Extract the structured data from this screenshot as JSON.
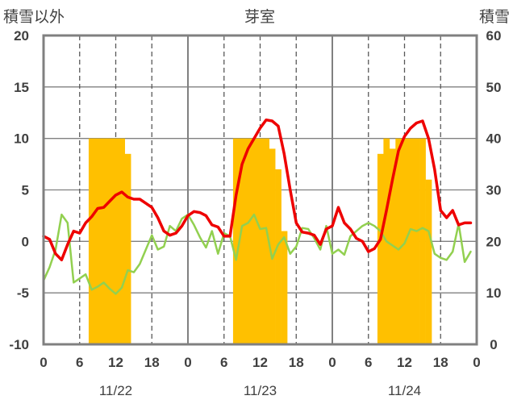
{
  "chart_data": {
    "type": "line",
    "title": "芽室",
    "left_axis_label": "積雪以外",
    "right_axis_label": "積雪",
    "left_ylim": [
      -10,
      20
    ],
    "left_ticks": [
      "20",
      "15",
      "10",
      "5",
      "0",
      "-5",
      "-10"
    ],
    "right_ylim": [
      0,
      60
    ],
    "right_ticks": [
      "60",
      "50",
      "40",
      "30",
      "20",
      "10",
      "0"
    ],
    "x_hour_ticks": [
      "0",
      "6",
      "12",
      "18",
      "0",
      "6",
      "12",
      "18",
      "0",
      "6",
      "12",
      "18",
      "0"
    ],
    "day_labels": [
      "11/22",
      "11/23",
      "11/24"
    ],
    "grid": "vertical dashed every 6 hours, horizontal solid every 5 units",
    "colors": {
      "temperature": "#ee0000",
      "wind": "#92d050",
      "snow_depth": "#ffc000",
      "baseline": "#7030a0",
      "frame": "#808080"
    },
    "snow_depth_bars": {
      "x_hours": [
        8,
        9,
        10,
        11,
        12,
        13,
        14,
        32,
        33,
        34,
        35,
        36,
        37,
        38,
        39,
        40,
        56,
        57,
        58,
        59,
        60,
        61,
        62,
        63,
        64
      ],
      "values": [
        40,
        40,
        40,
        40,
        40,
        40,
        37,
        40,
        40,
        40,
        40,
        40,
        40,
        38,
        34,
        22,
        37,
        40,
        38,
        40,
        40,
        40,
        40,
        40,
        32
      ]
    },
    "series": [
      {
        "key": "temperature",
        "x": [
          0,
          1,
          2,
          3,
          4,
          5,
          6,
          7,
          8,
          9,
          10,
          11,
          12,
          13,
          14,
          15,
          16,
          17,
          18,
          19,
          20,
          21,
          22,
          23,
          24,
          25,
          26,
          27,
          28,
          29,
          30,
          31,
          32,
          33,
          34,
          35,
          36,
          37,
          38,
          39,
          40,
          41,
          42,
          43,
          44,
          45,
          46,
          47,
          48,
          49,
          50,
          51,
          52,
          53,
          54,
          55,
          56,
          57,
          58,
          59,
          60,
          61,
          62,
          63,
          64,
          65,
          66,
          67,
          68,
          69,
          70,
          71
        ],
        "values": [
          0.5,
          0.2,
          -1.2,
          -1.8,
          -0.3,
          1.0,
          0.8,
          1.8,
          2.4,
          3.2,
          3.3,
          3.9,
          4.5,
          4.8,
          4.3,
          4.1,
          4.1,
          3.7,
          3.3,
          2.3,
          1.0,
          0.6,
          0.8,
          1.5,
          2.5,
          2.9,
          2.8,
          2.5,
          1.6,
          1.4,
          0.5,
          0.5,
          4.5,
          7.5,
          9.0,
          10.0,
          11.0,
          11.8,
          11.7,
          11.2,
          8.5,
          5.0,
          1.8,
          0.9,
          0.8,
          0.6,
          -0.3,
          1.2,
          1.5,
          3.3,
          1.8,
          1.2,
          0.3,
          0.0,
          -1.0,
          -0.7,
          0.2,
          3.0,
          6.0,
          8.8,
          10.2,
          11.0,
          11.5,
          11.7,
          10.0,
          7.0,
          3.0,
          2.3,
          3.0,
          1.6,
          1.8,
          1.8
        ]
      },
      {
        "key": "wind",
        "x": [
          0,
          1,
          2,
          3,
          4,
          5,
          6,
          7,
          8,
          9,
          10,
          11,
          12,
          13,
          14,
          15,
          16,
          17,
          18,
          19,
          20,
          21,
          22,
          23,
          24,
          25,
          26,
          27,
          28,
          29,
          30,
          31,
          32,
          33,
          34,
          35,
          36,
          37,
          38,
          39,
          40,
          41,
          42,
          43,
          44,
          45,
          46,
          47,
          48,
          49,
          50,
          51,
          52,
          53,
          54,
          55,
          56,
          57,
          58,
          59,
          60,
          61,
          62,
          63,
          64,
          65,
          66,
          67,
          68,
          69,
          70,
          71
        ],
        "values": [
          -3.8,
          -2.5,
          -0.8,
          2.6,
          1.8,
          -4.0,
          -3.6,
          -3.2,
          -4.7,
          -4.4,
          -4.0,
          -4.6,
          -5.1,
          -4.5,
          -2.8,
          -3.0,
          -2.2,
          -0.8,
          0.6,
          -0.8,
          -0.5,
          1.5,
          1.0,
          2.2,
          2.6,
          1.6,
          0.4,
          -0.6,
          1.0,
          -1.2,
          0.8,
          0.5,
          -1.8,
          1.5,
          1.8,
          2.6,
          1.2,
          1.3,
          -1.7,
          -0.3,
          0.4,
          -1.2,
          -0.5,
          1.3,
          1.2,
          0.3,
          -0.8,
          1.5,
          -1.2,
          -0.8,
          -1.3,
          0.5,
          1.0,
          1.5,
          1.8,
          1.5,
          1.0,
          0.0,
          -0.4,
          -0.8,
          -0.2,
          1.2,
          1.0,
          1.3,
          1.0,
          -1.2,
          -1.6,
          -1.8,
          -1.0,
          1.7,
          -2.0,
          -1.0
        ]
      },
      {
        "key": "baseline",
        "x": [
          0,
          72
        ],
        "values": [
          -10,
          -10
        ]
      }
    ]
  }
}
